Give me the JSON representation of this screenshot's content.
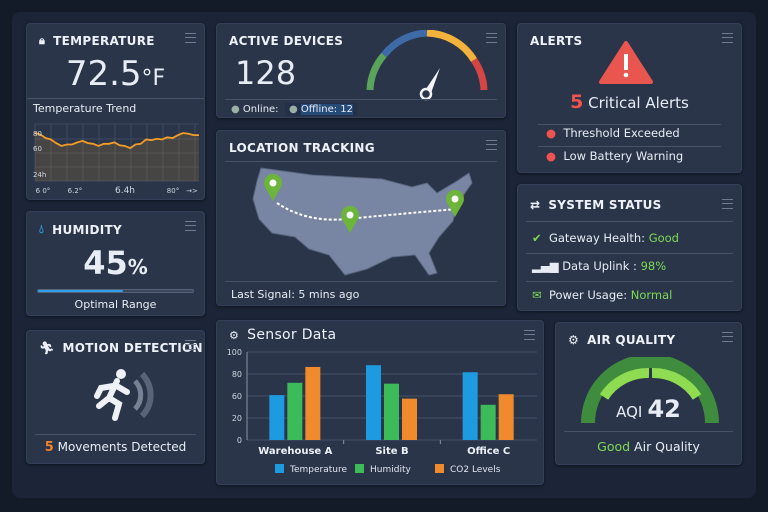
{
  "temperature": {
    "title": "TEMPERATURE",
    "value": "72.5",
    "unit": "°F",
    "trend_title": "Temperature Trend",
    "y_labels": [
      "80",
      "60",
      "24h"
    ],
    "x_labels": [
      "6 0°",
      "6.2°",
      "6.4h",
      "80°",
      "→>"
    ],
    "series": [
      80,
      78,
      73,
      71,
      66,
      62,
      64,
      64,
      67,
      69,
      66,
      65,
      62,
      65,
      65,
      67,
      63,
      62,
      59,
      64,
      65,
      71,
      70,
      72,
      71,
      74,
      73,
      77,
      80,
      79,
      77,
      77
    ],
    "line_color": "#f39c27"
  },
  "humidity": {
    "title": "HUMIDITY",
    "value": "45",
    "unit": "%",
    "progress": 0.55,
    "status": "Optimal Range"
  },
  "motion": {
    "title": "MOTION DETECTION",
    "count": "5",
    "label": "Movements Detected"
  },
  "devices": {
    "title": "ACTIVE DEVICES",
    "value": "128",
    "online_label": "Online:",
    "offline_label": "Offline: 12"
  },
  "location": {
    "title": "LOCATION TRACKING",
    "last_signal": "Last Signal: 5 mins ago"
  },
  "alerts": {
    "title": "ALERTS",
    "count": "5",
    "label": "Critical Alerts",
    "items": [
      "Threshold Exceeded",
      "Low Battery Warning"
    ],
    "color": "#ef5350"
  },
  "system": {
    "title": "SYSTEM STATUS",
    "items": [
      {
        "label": "Gateway Health:",
        "value": "Good",
        "icon": "check-circle-icon"
      },
      {
        "label": "Data Uplink :",
        "value": "98%",
        "icon": "signal-bars-icon"
      },
      {
        "label": "Power Usage:",
        "value": "Normal",
        "icon": "envelope-icon"
      }
    ]
  },
  "air": {
    "title": "AIR QUALITY",
    "aqi_label": "AQI",
    "aqi_value": "42",
    "quality_word": "Good",
    "quality_rest": "Air Quality"
  },
  "sensor": {
    "title": "Sensor Data"
  },
  "chart_data": {
    "type": "bar",
    "title": "Sensor Data",
    "categories": [
      "Warehouse A",
      "Site B",
      "Office C"
    ],
    "y_tick_labels": [
      "0",
      "20",
      "60",
      "80",
      "100"
    ],
    "ylim": [
      0,
      100
    ],
    "grid": true,
    "legend": "bottom",
    "series": [
      {
        "name": "Temperature",
        "color": "#1e9be0",
        "values": [
          51,
          85,
          77
        ]
      },
      {
        "name": "Humidity",
        "color": "#3dbb5a",
        "values": [
          65,
          64,
          40
        ]
      },
      {
        "name": "CO2 Levels",
        "color": "#f08a2c",
        "values": [
          83,
          47,
          52
        ]
      }
    ]
  }
}
